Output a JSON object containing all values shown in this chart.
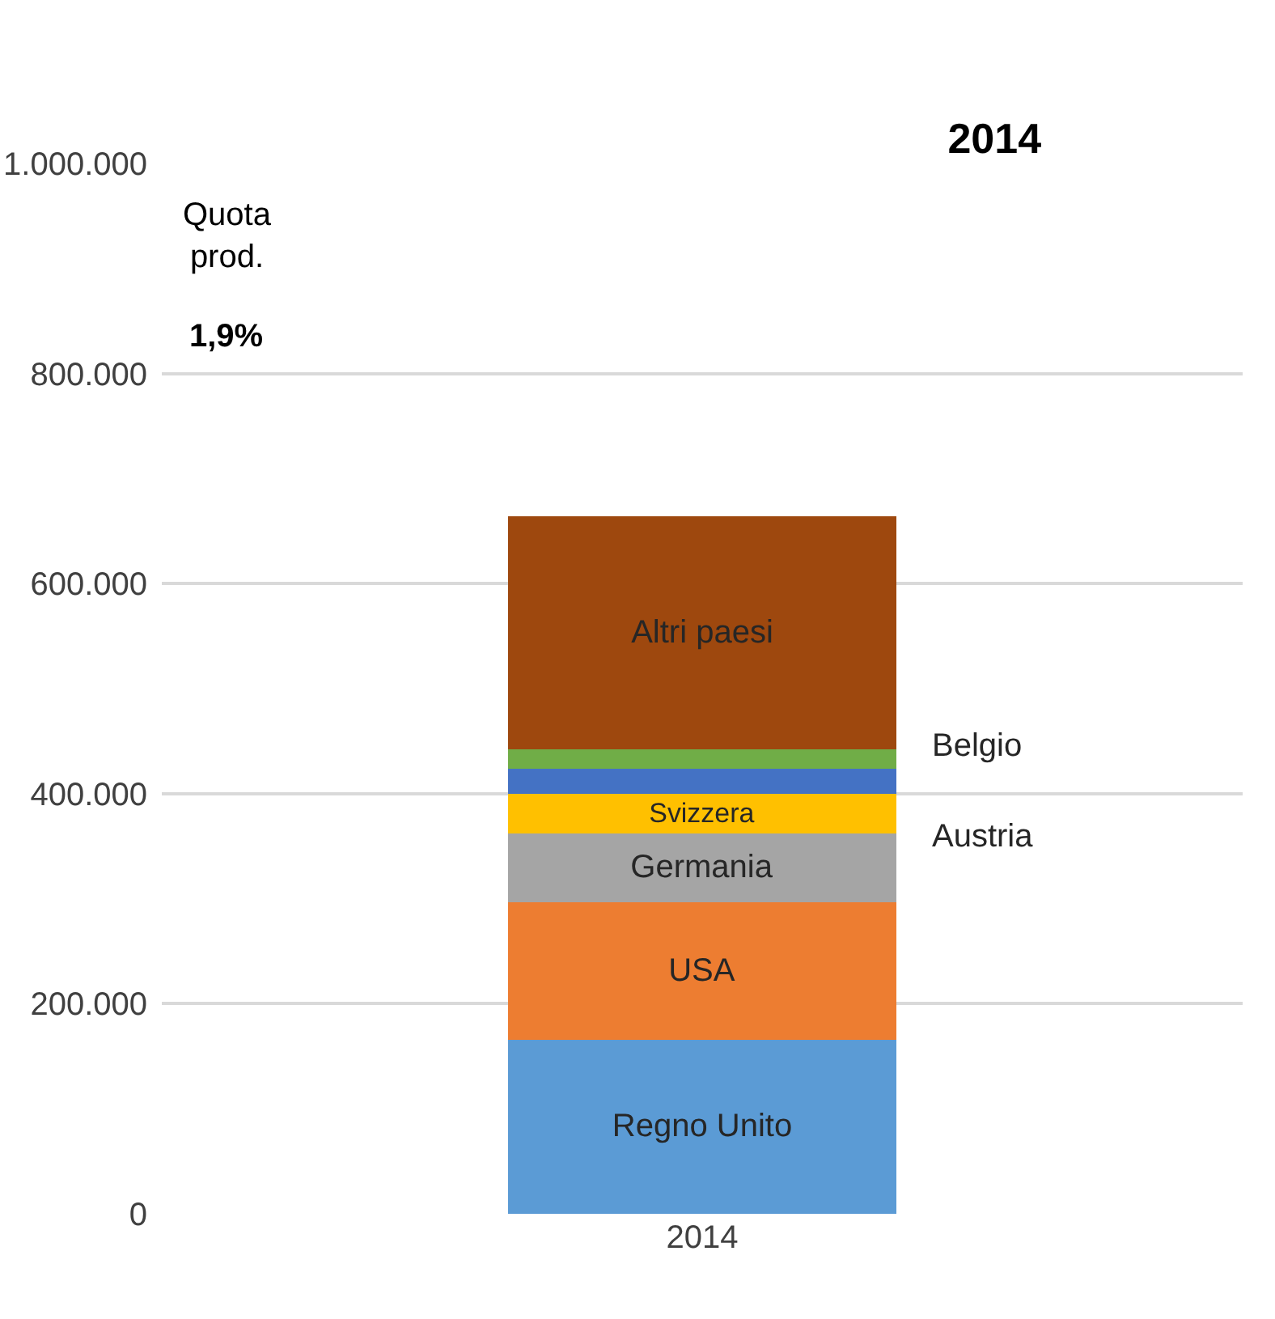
{
  "chart_data": {
    "type": "bar",
    "title": "2014",
    "stacked": true,
    "categories": [
      "2014"
    ],
    "series": [
      {
        "name": "Regno Unito",
        "color": "#5b9bd5",
        "values": [
          166000
        ]
      },
      {
        "name": "USA",
        "color": "#ed7d31",
        "values": [
          131000
        ]
      },
      {
        "name": "Germania",
        "color": "#a5a5a5",
        "values": [
          65000
        ]
      },
      {
        "name": "Svizzera",
        "color": "#ffc000",
        "values": [
          38000
        ]
      },
      {
        "name": "Austria",
        "color": "#4472c4",
        "values": [
          24000
        ]
      },
      {
        "name": "Belgio",
        "color": "#70ad47",
        "values": [
          18000
        ]
      },
      {
        "name": "Altri paesi",
        "color": "#9e480e",
        "values": [
          222000
        ]
      }
    ],
    "ylim": [
      0,
      1000000
    ],
    "yticks": [
      {
        "value": 0,
        "label": "0"
      },
      {
        "value": 200000,
        "label": "200.000"
      },
      {
        "value": 400000,
        "label": "400.000"
      },
      {
        "value": 600000,
        "label": "600.000"
      },
      {
        "value": 800000,
        "label": "800.000"
      },
      {
        "value": 1000000,
        "label": "1.000.000"
      }
    ],
    "grid": "y",
    "legend": false,
    "annotations": [
      "Quota prod.",
      "1,9%"
    ]
  }
}
